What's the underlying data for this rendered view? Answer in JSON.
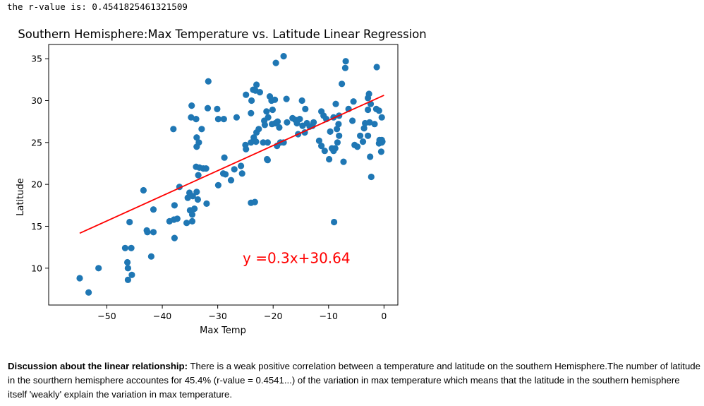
{
  "output_line": {
    "label": "the r-value is:",
    "value": "0.4541825461321509"
  },
  "discussion": {
    "heading": "Discussion about the linear relationship:",
    "text": "There is a weak positive correlation between a temperature and latitude on the southern Hemisphere.The number of latitude in the sourthern hemisphere accountes for 45.4% (r-value = 0.4541...) of the variation in max temperature which means that the latitude in the southern hemisphere itself 'weakly' explain the variation in max temperature."
  },
  "chart_data": {
    "type": "scatter",
    "title": "Southern Hemisphere:Max Temperature vs. Latitude Linear Regression",
    "xlabel": "Max Temp",
    "ylabel": "Latitude",
    "xlim": [
      -60.5,
      2.5
    ],
    "ylim": [
      5.6,
      36.7
    ],
    "xticks": [
      -50,
      -40,
      -30,
      -20,
      -10,
      0
    ],
    "yticks": [
      10,
      15,
      20,
      25,
      30,
      35
    ],
    "xtick_labels": [
      "−50",
      "−40",
      "−30",
      "−20",
      "−10",
      "0"
    ],
    "ytick_labels": [
      "10",
      "15",
      "20",
      "25",
      "30",
      "35"
    ],
    "grid": false,
    "point_color": "#1f77b4",
    "line_color": "#ff0000",
    "equation_label": "y =0.3x+30.64",
    "equation_position": [
      -25.5,
      10.6
    ],
    "regression": {
      "slope": 0.3,
      "intercept": 30.64,
      "x_range": [
        -54.9,
        0.0
      ]
    },
    "points": [
      [
        -54.9,
        8.8
      ],
      [
        -53.3,
        7.1
      ],
      [
        -51.5,
        10.0
      ],
      [
        -46.7,
        12.4
      ],
      [
        -45.6,
        12.4
      ],
      [
        -46.3,
        10.7
      ],
      [
        -46.2,
        10.0
      ],
      [
        -45.5,
        9.2
      ],
      [
        -46.2,
        8.6
      ],
      [
        -45.9,
        15.5
      ],
      [
        -43.4,
        19.3
      ],
      [
        -42.8,
        14.5
      ],
      [
        -42.7,
        14.3
      ],
      [
        -41.6,
        14.3
      ],
      [
        -41.6,
        17.0
      ],
      [
        -42.0,
        11.4
      ],
      [
        -38.7,
        15.6
      ],
      [
        -37.9,
        15.8
      ],
      [
        -37.3,
        15.9
      ],
      [
        -37.8,
        17.5
      ],
      [
        -37.8,
        13.6
      ],
      [
        -38.0,
        26.6
      ],
      [
        -36.9,
        19.7
      ],
      [
        -35.6,
        15.4
      ],
      [
        -34.6,
        15.6
      ],
      [
        -35.0,
        16.9
      ],
      [
        -34.6,
        16.4
      ],
      [
        -34.2,
        17.1
      ],
      [
        -35.4,
        18.4
      ],
      [
        -35.1,
        19.0
      ],
      [
        -34.5,
        18.6
      ],
      [
        -33.8,
        19.1
      ],
      [
        -33.6,
        18.2
      ],
      [
        -32.0,
        17.7
      ],
      [
        -33.9,
        22.1
      ],
      [
        -33.3,
        22.0
      ],
      [
        -32.6,
        21.9
      ],
      [
        -32.1,
        21.9
      ],
      [
        -33.5,
        21.1
      ],
      [
        -33.8,
        24.5
      ],
      [
        -33.8,
        25.6
      ],
      [
        -33.4,
        25.0
      ],
      [
        -32.9,
        26.6
      ],
      [
        -34.8,
        28.0
      ],
      [
        -33.9,
        27.8
      ],
      [
        -34.7,
        29.4
      ],
      [
        -31.7,
        32.3
      ],
      [
        -31.8,
        29.1
      ],
      [
        -30.1,
        29.0
      ],
      [
        -29.9,
        27.8
      ],
      [
        -28.9,
        27.8
      ],
      [
        -29.9,
        19.9
      ],
      [
        -29.0,
        21.3
      ],
      [
        -28.6,
        21.2
      ],
      [
        -28.8,
        23.2
      ],
      [
        -27.6,
        20.5
      ],
      [
        -27.0,
        21.8
      ],
      [
        -26.6,
        28.0
      ],
      [
        -25.8,
        22.2
      ],
      [
        -25.6,
        21.3
      ],
      [
        -25.0,
        24.7
      ],
      [
        -24.9,
        24.2
      ],
      [
        -24.0,
        25.0
      ],
      [
        -24.0,
        17.8
      ],
      [
        -23.3,
        17.9
      ],
      [
        -23.5,
        25.6
      ],
      [
        -23.1,
        25.1
      ],
      [
        -21.8,
        25.0
      ],
      [
        -21.0,
        25.0
      ],
      [
        -23.0,
        26.2
      ],
      [
        -22.6,
        26.6
      ],
      [
        -21.5,
        27.1
      ],
      [
        -21.6,
        27.6
      ],
      [
        -20.9,
        28.0
      ],
      [
        -21.2,
        28.7
      ],
      [
        -24.0,
        28.5
      ],
      [
        -23.9,
        30.0
      ],
      [
        -24.9,
        30.7
      ],
      [
        -23.6,
        31.3
      ],
      [
        -23.2,
        31.2
      ],
      [
        -23.0,
        31.9
      ],
      [
        -22.4,
        31.0
      ],
      [
        -20.6,
        30.5
      ],
      [
        -20.3,
        30.0
      ],
      [
        -19.7,
        30.1
      ],
      [
        -20.1,
        28.9
      ],
      [
        -19.2,
        27.5
      ],
      [
        -19.6,
        27.3
      ],
      [
        -20.2,
        27.2
      ],
      [
        -18.9,
        26.8
      ],
      [
        -19.3,
        24.6
      ],
      [
        -18.7,
        25.0
      ],
      [
        -18.1,
        25.0
      ],
      [
        -21.1,
        23.0
      ],
      [
        -21.0,
        22.9
      ],
      [
        -19.5,
        34.5
      ],
      [
        -18.1,
        35.3
      ],
      [
        -17.6,
        30.2
      ],
      [
        -17.5,
        27.4
      ],
      [
        -16.5,
        27.9
      ],
      [
        -16.0,
        27.7
      ],
      [
        -15.7,
        27.3
      ],
      [
        -15.2,
        27.8
      ],
      [
        -14.7,
        27.0
      ],
      [
        -14.3,
        26.2
      ],
      [
        -15.5,
        26.0
      ],
      [
        -13.9,
        27.3
      ],
      [
        -13.4,
        26.9
      ],
      [
        -12.9,
        27.0
      ],
      [
        -12.7,
        27.4
      ],
      [
        -14.8,
        30.0
      ],
      [
        -14.2,
        29.0
      ],
      [
        -11.3,
        28.7
      ],
      [
        -10.9,
        28.2
      ],
      [
        -10.4,
        27.8
      ],
      [
        -9.1,
        28.0
      ],
      [
        -11.7,
        25.2
      ],
      [
        -11.3,
        24.6
      ],
      [
        -10.7,
        24.0
      ],
      [
        -9.9,
        23.0
      ],
      [
        -9.4,
        24.3
      ],
      [
        -9.1,
        24.0
      ],
      [
        -8.8,
        24.3
      ],
      [
        -8.4,
        25.0
      ],
      [
        -8.1,
        25.8
      ],
      [
        -8.5,
        26.6
      ],
      [
        -9.7,
        26.3
      ],
      [
        -8.7,
        29.6
      ],
      [
        -8.2,
        27.2
      ],
      [
        -8.1,
        28.2
      ],
      [
        -7.6,
        32.0
      ],
      [
        -7.3,
        22.7
      ],
      [
        -6.4,
        29.0
      ],
      [
        -7.0,
        33.9
      ],
      [
        -6.9,
        34.7
      ],
      [
        -5.5,
        29.9
      ],
      [
        -5.7,
        27.6
      ],
      [
        -5.3,
        24.7
      ],
      [
        -4.8,
        24.5
      ],
      [
        -4.3,
        25.8
      ],
      [
        -3.8,
        25.1
      ],
      [
        -3.6,
        26.7
      ],
      [
        -3.4,
        27.3
      ],
      [
        -2.9,
        25.8
      ],
      [
        -2.6,
        27.4
      ],
      [
        -2.9,
        28.9
      ],
      [
        -2.9,
        30.3
      ],
      [
        -2.4,
        29.6
      ],
      [
        -2.7,
        30.8
      ],
      [
        -2.5,
        23.3
      ],
      [
        -2.3,
        20.9
      ],
      [
        -1.7,
        27.2
      ],
      [
        -1.4,
        29.0
      ],
      [
        -0.9,
        28.8
      ],
      [
        -1.3,
        34.0
      ],
      [
        -0.8,
        25.3
      ],
      [
        -0.9,
        24.9
      ],
      [
        -0.5,
        23.9
      ],
      [
        -0.4,
        25.0
      ],
      [
        -0.4,
        28.0
      ],
      [
        -0.3,
        25.1
      ],
      [
        -0.4,
        25.3
      ],
      [
        -9.0,
        15.5
      ]
    ]
  }
}
